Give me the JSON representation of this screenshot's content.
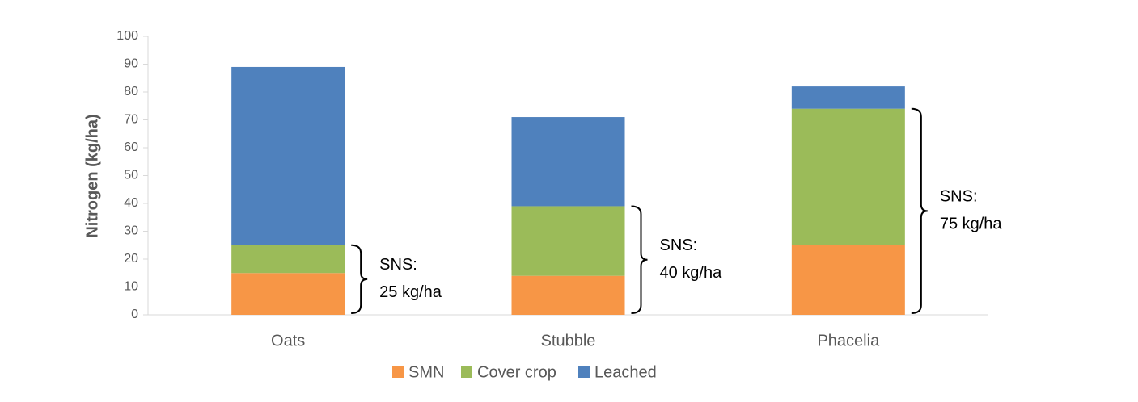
{
  "chart_data": {
    "type": "stacked-bar",
    "y_label": "Nitrogen (kg/ha)",
    "categories": [
      "Oats",
      "Stubble",
      "Phacelia"
    ],
    "series": [
      {
        "name": "SMN",
        "color": "#f79646",
        "values": [
          15,
          14,
          25
        ]
      },
      {
        "name": "Cover crop",
        "color": "#9bbb59",
        "values": [
          10,
          25,
          49
        ]
      },
      {
        "name": "Leached",
        "color": "#4f81bd",
        "values": [
          64,
          32,
          8
        ]
      }
    ],
    "ylim": [
      0,
      100
    ],
    "yticks": [
      0,
      10,
      20,
      30,
      40,
      50,
      60,
      70,
      80,
      90,
      100
    ],
    "annotations": [
      [
        "SNS:",
        "25 kg/ha"
      ],
      [
        "SNS:",
        "40 kg/ha"
      ],
      [
        "SNS:",
        "75 kg/ha"
      ]
    ],
    "legend": "bottom"
  }
}
